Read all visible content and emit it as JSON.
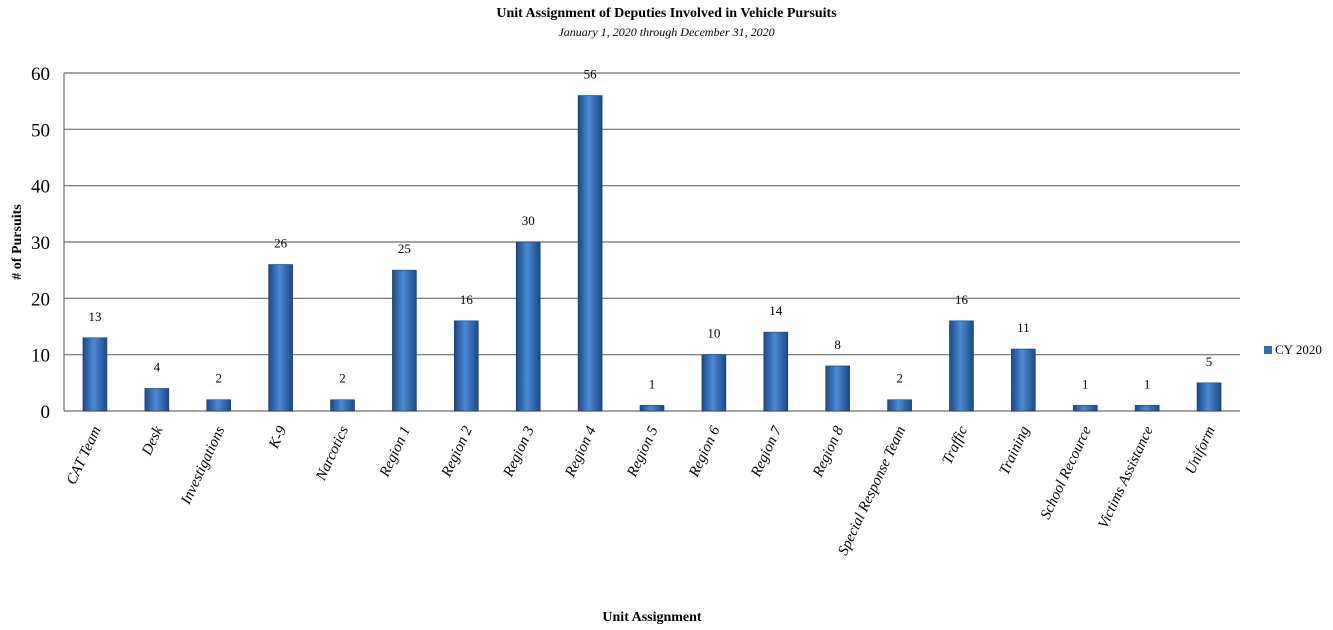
{
  "chart_data": {
    "type": "bar",
    "title": "Unit Assignment of Deputies Involved in Vehicle Pursuits",
    "subtitle": "January 1, 2020 through December 31, 2020",
    "xlabel": "Unit Assignment",
    "ylabel": "# of Pursuits",
    "ylim": [
      0,
      60
    ],
    "yticks": [
      0,
      10,
      20,
      30,
      40,
      50,
      60
    ],
    "grid": true,
    "legend_position": "right",
    "categories": [
      "CAT Team",
      "Desk",
      "Investigations",
      "K-9",
      "Narcotics",
      "Region 1",
      "Region 2",
      "Region 3",
      "Region 4",
      "Region 5",
      "Region 6",
      "Region 7",
      "Region 8",
      "Special Response Team",
      "Traffic",
      "Training",
      "School Recource",
      "Victims Assistance",
      "Uniform"
    ],
    "series": [
      {
        "name": "CY 2020",
        "color": "#2f6db5",
        "values": [
          13,
          4,
          2,
          26,
          2,
          25,
          16,
          30,
          56,
          1,
          10,
          14,
          8,
          2,
          16,
          11,
          1,
          1,
          5
        ]
      }
    ]
  }
}
